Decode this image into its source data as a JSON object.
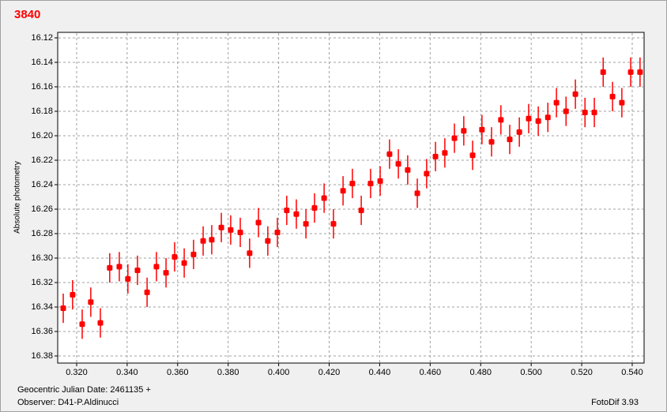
{
  "chart_data": {
    "type": "scatter",
    "title": "3840",
    "ylabel": "Absolute photometry",
    "xlabel": "Geocentric Julian Date: 2461135 +",
    "annotations": [
      "Observer: D41-P.Aldinucci",
      "FotoDif 3.93"
    ],
    "color": "#ff0000",
    "grid": true,
    "y_inverted": true,
    "xlim": [
      0.3125,
      0.5447
    ],
    "ylim": [
      16.1155,
      16.3858
    ],
    "xticks": [
      {
        "value": 0.32,
        "label": "0.320"
      },
      {
        "value": 0.34,
        "label": "0.340"
      },
      {
        "value": 0.36,
        "label": "0.360"
      },
      {
        "value": 0.38,
        "label": "0.380"
      },
      {
        "value": 0.4,
        "label": "0.400"
      },
      {
        "value": 0.42,
        "label": "0.420"
      },
      {
        "value": 0.44,
        "label": "0.440"
      },
      {
        "value": 0.46,
        "label": "0.460"
      },
      {
        "value": 0.48,
        "label": "0.480"
      },
      {
        "value": 0.5,
        "label": "0.500"
      },
      {
        "value": 0.52,
        "label": "0.520"
      },
      {
        "value": 0.54,
        "label": "0.540"
      }
    ],
    "yticks": [
      16.12,
      16.14,
      16.16,
      16.18,
      {
        "value": 16.2,
        "label": "16.20"
      },
      16.22,
      16.24,
      16.26,
      16.28,
      {
        "value": 16.3,
        "label": "16.30"
      },
      16.32,
      16.34,
      16.36,
      16.38
    ],
    "series": [
      {
        "x": [
          0.3147,
          0.3184,
          0.3222,
          0.3256,
          0.3294,
          0.3331,
          0.3369,
          0.3403,
          0.3441,
          0.3479,
          0.3516,
          0.3554,
          0.3588,
          0.3626,
          0.3663,
          0.3701,
          0.3735,
          0.3773,
          0.381,
          0.3848,
          0.3885,
          0.392,
          0.3957,
          0.3995,
          0.4032,
          0.407,
          0.4108,
          0.4142,
          0.418,
          0.4217,
          0.4255,
          0.4292,
          0.4327,
          0.4364,
          0.4402,
          0.4439,
          0.4474,
          0.4511,
          0.4549,
          0.4586,
          0.4621,
          0.4658,
          0.4696,
          0.4733,
          0.4768,
          0.4805,
          0.4843,
          0.488,
          0.4915,
          0.4953,
          0.499,
          0.5028,
          0.5066,
          0.51,
          0.5138,
          0.5175,
          0.5213,
          0.525,
          0.5285,
          0.5322,
          0.5359,
          0.5394,
          0.5431
        ],
        "values": [
          16.341,
          16.33,
          16.354,
          16.336,
          16.353,
          16.308,
          16.307,
          16.317,
          16.31,
          16.328,
          16.307,
          16.312,
          16.299,
          16.304,
          16.297,
          16.286,
          16.285,
          16.275,
          16.277,
          16.279,
          16.296,
          16.271,
          16.286,
          16.279,
          16.261,
          16.264,
          16.272,
          16.259,
          16.251,
          16.272,
          16.245,
          16.239,
          16.261,
          16.239,
          16.237,
          16.215,
          16.223,
          16.228,
          16.247,
          16.231,
          16.217,
          16.214,
          16.202,
          16.196,
          16.216,
          16.195,
          16.205,
          16.187,
          16.203,
          16.197,
          16.186,
          16.188,
          16.185,
          16.173,
          16.18,
          16.166,
          16.181,
          16.181,
          16.148,
          16.168,
          16.173,
          16.148,
          16.148
        ],
        "errors": [
          0.012,
          0.012,
          0.012,
          0.012,
          0.012,
          0.012,
          0.012,
          0.012,
          0.012,
          0.012,
          0.012,
          0.012,
          0.012,
          0.012,
          0.012,
          0.012,
          0.012,
          0.012,
          0.012,
          0.012,
          0.012,
          0.012,
          0.012,
          0.012,
          0.012,
          0.012,
          0.012,
          0.012,
          0.012,
          0.012,
          0.012,
          0.012,
          0.012,
          0.012,
          0.012,
          0.012,
          0.012,
          0.012,
          0.012,
          0.012,
          0.012,
          0.012,
          0.012,
          0.012,
          0.012,
          0.012,
          0.012,
          0.012,
          0.012,
          0.012,
          0.012,
          0.012,
          0.012,
          0.012,
          0.012,
          0.012,
          0.012,
          0.012,
          0.012,
          0.012,
          0.012,
          0.012,
          0.012
        ]
      }
    ]
  }
}
